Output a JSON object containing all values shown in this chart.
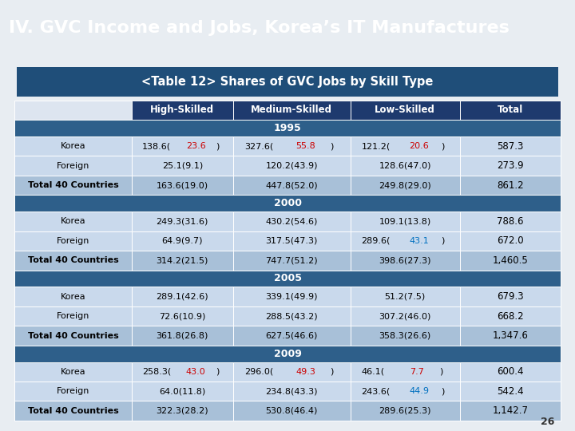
{
  "title": "IV. GVC Income and Jobs, Korea’s IT Manufactures",
  "subtitle": "<Table 12> Shares of GVC Jobs by Skill Type",
  "title_bg": "#1e3a6e",
  "page_bg": "#e8edf2",
  "outer_frame_bg": "#e0e8f0",
  "subtitle_bg": "#1f4e79",
  "header_bg": "#1e3a6e",
  "year_bg": "#2e5f8a",
  "data_row_bg": "#c9d9ec",
  "total_row_bg": "#a8c0d8",
  "red_color": "#cc0000",
  "blue_color": "#0070c0",
  "col_headers": [
    "",
    "High-Skilled",
    "Medium-Skilled",
    "Low-Skilled",
    "Total"
  ],
  "years": [
    "1995",
    "2000",
    "2005",
    "2009"
  ],
  "rows": {
    "1995": [
      {
        "label": "Korea",
        "hs": "138.6",
        "hs_r": "23.6",
        "ms": "327.6",
        "ms_r": "55.8",
        "ls": "121.2",
        "ls_r": "20.6",
        "total": "587.3",
        "hs_color": "red",
        "ms_color": "red",
        "ls_color": "red"
      },
      {
        "label": "Foreign",
        "hs": "25.1",
        "hs_r": "9.1",
        "ms": "120.2",
        "ms_r": "43.9",
        "ls": "128.6",
        "ls_r": "47.0",
        "total": "273.9",
        "hs_color": "none",
        "ms_color": "none",
        "ls_color": "none"
      },
      {
        "label": "Total 40 Countries",
        "hs": "163.6",
        "hs_r": "19.0",
        "ms": "447.8",
        "ms_r": "52.0",
        "ls": "249.8",
        "ls_r": "29.0",
        "total": "861.2",
        "hs_color": "none",
        "ms_color": "none",
        "ls_color": "none"
      }
    ],
    "2000": [
      {
        "label": "Korea",
        "hs": "249.3",
        "hs_r": "31.6",
        "ms": "430.2",
        "ms_r": "54.6",
        "ls": "109.1",
        "ls_r": "13.8",
        "total": "788.6",
        "hs_color": "none",
        "ms_color": "none",
        "ls_color": "none"
      },
      {
        "label": "Foreign",
        "hs": "64.9",
        "hs_r": "9.7",
        "ms": "317.5",
        "ms_r": "47.3",
        "ls": "289.6",
        "ls_r": "43.1",
        "total": "672.0",
        "hs_color": "none",
        "ms_color": "none",
        "ls_color": "blue"
      },
      {
        "label": "Total 40 Countries",
        "hs": "314.2",
        "hs_r": "21.5",
        "ms": "747.7",
        "ms_r": "51.2",
        "ls": "398.6",
        "ls_r": "27.3",
        "total": "1,460.5",
        "hs_color": "none",
        "ms_color": "none",
        "ls_color": "none"
      }
    ],
    "2005": [
      {
        "label": "Korea",
        "hs": "289.1",
        "hs_r": "42.6",
        "ms": "339.1",
        "ms_r": "49.9",
        "ls": "51.2",
        "ls_r": "7.5",
        "total": "679.3",
        "hs_color": "none",
        "ms_color": "none",
        "ls_color": "none"
      },
      {
        "label": "Foreign",
        "hs": "72.6",
        "hs_r": "10.9",
        "ms": "288.5",
        "ms_r": "43.2",
        "ls": "307.2",
        "ls_r": "46.0",
        "total": "668.2",
        "hs_color": "none",
        "ms_color": "none",
        "ls_color": "none"
      },
      {
        "label": "Total 40 Countries",
        "hs": "361.8",
        "hs_r": "26.8",
        "ms": "627.5",
        "ms_r": "46.6",
        "ls": "358.3",
        "ls_r": "26.6",
        "total": "1,347.6",
        "hs_color": "none",
        "ms_color": "none",
        "ls_color": "none"
      }
    ],
    "2009": [
      {
        "label": "Korea",
        "hs": "258.3",
        "hs_r": "43.0",
        "ms": "296.0",
        "ms_r": "49.3",
        "ls": "46.1",
        "ls_r": "7.7",
        "total": "600.4",
        "hs_color": "red",
        "ms_color": "red",
        "ls_color": "red"
      },
      {
        "label": "Foreign",
        "hs": "64.0",
        "hs_r": "11.8",
        "ms": "234.8",
        "ms_r": "43.3",
        "ls": "243.6",
        "ls_r": "44.9",
        "total": "542.4",
        "hs_color": "none",
        "ms_color": "none",
        "ls_color": "blue"
      },
      {
        "label": "Total 40 Countries",
        "hs": "322.3",
        "hs_r": "28.2",
        "ms": "530.8",
        "ms_r": "46.4",
        "ls": "289.6",
        "ls_r": "25.3",
        "total": "1,142.7",
        "hs_color": "none",
        "ms_color": "none",
        "ls_color": "none"
      }
    ]
  },
  "page_num": "26"
}
